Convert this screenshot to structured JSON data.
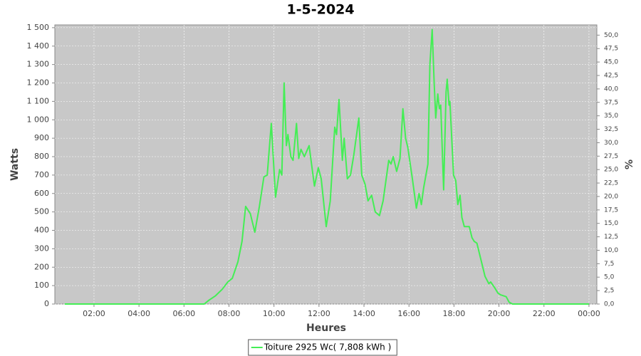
{
  "chart_data": {
    "type": "line",
    "title": "1-5-2024",
    "x_label": "Heures",
    "y_label": "Watts",
    "y2_label": "%",
    "grid": true,
    "legend": "bottom",
    "background": "#c8c8c8",
    "xlim": [
      0.26,
      24.35
    ],
    "xticks": [
      {
        "value": 2,
        "label": "02:00"
      },
      {
        "value": 4,
        "label": "04:00"
      },
      {
        "value": 6,
        "label": "06:00"
      },
      {
        "value": 8,
        "label": "08:00"
      },
      {
        "value": 10,
        "label": "10:00"
      },
      {
        "value": 12,
        "label": "12:00"
      },
      {
        "value": 14,
        "label": "14:00"
      },
      {
        "value": 16,
        "label": "16:00"
      },
      {
        "value": 18,
        "label": "18:00"
      },
      {
        "value": 20,
        "label": "20:00"
      },
      {
        "value": 22,
        "label": "22:00"
      },
      {
        "value": 24,
        "label": "00:00"
      }
    ],
    "ylim": [
      0,
      1515
    ],
    "yticks": [
      0,
      100,
      200,
      300,
      400,
      500,
      600,
      700,
      800,
      900,
      {
        "value": 1000,
        "label": "1 000"
      },
      {
        "value": 1100,
        "label": "1 100"
      },
      {
        "value": 1200,
        "label": "1 200"
      },
      {
        "value": 1300,
        "label": "1 300"
      },
      {
        "value": 1400,
        "label": "1 400"
      },
      {
        "value": 1500,
        "label": "1 500"
      }
    ],
    "y2lim": [
      0,
      51.9
    ],
    "y2ticks": [
      {
        "value": 0,
        "label": "0,0"
      },
      {
        "value": 2.5,
        "label": "2,5"
      },
      {
        "value": 5,
        "label": "5,0"
      },
      {
        "value": 7.5,
        "label": "7,5"
      },
      {
        "value": 10,
        "label": "10,0"
      },
      {
        "value": 12.5,
        "label": "12,5"
      },
      {
        "value": 15,
        "label": "15,0"
      },
      {
        "value": 17.5,
        "label": "17,5"
      },
      {
        "value": 20,
        "label": "20,0"
      },
      {
        "value": 22.5,
        "label": "22,5"
      },
      {
        "value": 25,
        "label": "25,0"
      },
      {
        "value": 27.5,
        "label": "27,5"
      },
      {
        "value": 30,
        "label": "30,0"
      },
      {
        "value": 32.5,
        "label": "32,5"
      },
      {
        "value": 35,
        "label": "35,0"
      },
      {
        "value": 37.5,
        "label": "37,5"
      },
      {
        "value": 40,
        "label": "40,0"
      },
      {
        "value": 42.5,
        "label": "42,5"
      },
      {
        "value": 45,
        "label": "45,0"
      },
      {
        "value": 47.5,
        "label": "47,5"
      },
      {
        "value": 50,
        "label": "50,0"
      }
    ],
    "x": [
      0.7,
      6.9,
      7.1,
      7.4,
      7.7,
      7.95,
      8.15,
      8.4,
      8.58,
      8.74,
      8.95,
      9.15,
      9.35,
      9.55,
      9.7,
      9.88,
      10.07,
      10.25,
      10.35,
      10.45,
      10.55,
      10.62,
      10.75,
      10.85,
      11.0,
      11.1,
      11.2,
      11.35,
      11.56,
      11.8,
      11.97,
      12.1,
      12.32,
      12.5,
      12.7,
      12.78,
      12.89,
      13.04,
      13.12,
      13.26,
      13.4,
      13.55,
      13.77,
      13.9,
      14.05,
      14.18,
      14.34,
      14.5,
      14.69,
      14.85,
      15.1,
      15.2,
      15.3,
      15.45,
      15.6,
      15.73,
      15.85,
      15.95,
      16.15,
      16.33,
      16.45,
      16.55,
      16.65,
      16.84,
      16.93,
      17.03,
      17.12,
      17.19,
      17.28,
      17.35,
      17.41,
      17.54,
      17.65,
      17.7,
      17.78,
      17.82,
      17.98,
      18.08,
      18.17,
      18.27,
      18.35,
      18.46,
      18.68,
      18.8,
      18.9,
      19.02,
      19.2,
      19.38,
      19.55,
      19.63,
      19.8,
      19.95,
      20.07,
      20.32,
      20.45,
      20.6,
      24
    ],
    "series": [
      {
        "name": "Toiture 2925 Wc( 7,808 kWh )",
        "color": "#44ee55",
        "values": [
          0,
          0,
          20,
          45,
          80,
          120,
          140,
          230,
          340,
          530,
          490,
          390,
          530,
          690,
          700,
          980,
          580,
          730,
          700,
          1200,
          860,
          920,
          800,
          780,
          980,
          790,
          840,
          800,
          860,
          640,
          740,
          680,
          420,
          560,
          960,
          920,
          1110,
          780,
          900,
          680,
          700,
          810,
          1010,
          700,
          650,
          560,
          590,
          500,
          480,
          560,
          780,
          760,
          800,
          720,
          790,
          1060,
          900,
          850,
          680,
          520,
          600,
          540,
          630,
          760,
          1300,
          1490,
          1200,
          1010,
          1140,
          1060,
          1080,
          620,
          1150,
          1220,
          1080,
          1100,
          700,
          670,
          540,
          590,
          470,
          420,
          420,
          360,
          340,
          330,
          240,
          150,
          110,
          120,
          90,
          60,
          50,
          40,
          10,
          0,
          0
        ]
      }
    ]
  }
}
